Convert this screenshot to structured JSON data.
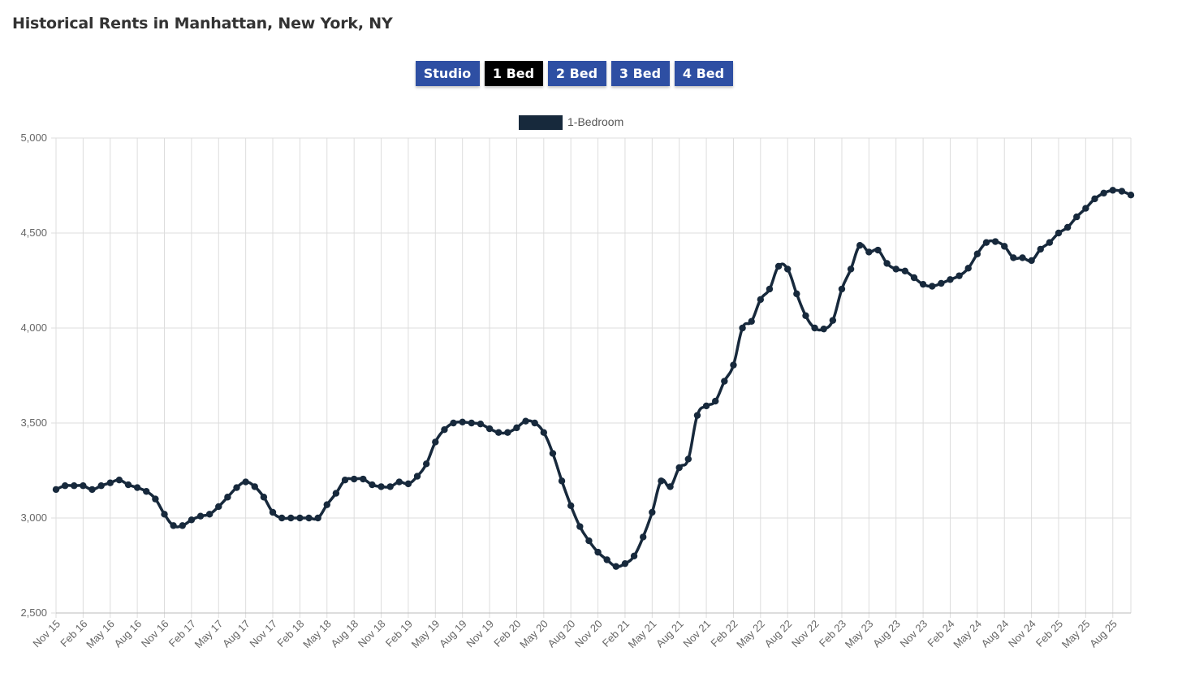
{
  "page": {
    "title": "Historical Rents in Manhattan, New York, NY"
  },
  "tabs": [
    {
      "label": "Studio",
      "active": false
    },
    {
      "label": "1 Bed",
      "active": true
    },
    {
      "label": "2 Bed",
      "active": false
    },
    {
      "label": "3 Bed",
      "active": false
    },
    {
      "label": "4 Bed",
      "active": false
    }
  ],
  "colors": {
    "tab_inactive": "#2e4fa3",
    "tab_active": "#000000",
    "series": "#17293c",
    "grid": "#dddddd"
  },
  "chart_data": {
    "type": "line",
    "title": "",
    "xlabel": "",
    "ylabel": "",
    "ylim": [
      2500,
      5000
    ],
    "yticks": [
      2500,
      3000,
      3500,
      4000,
      4500,
      5000
    ],
    "ytick_labels": [
      "2,500",
      "3,000",
      "3,500",
      "4,000",
      "4,500",
      "5,000"
    ],
    "x_tick_labels": [
      "Nov 15",
      "Feb 16",
      "May 16",
      "Aug 16",
      "Nov 16",
      "Feb 17",
      "May 17",
      "Aug 17",
      "Nov 17",
      "Feb 18",
      "May 18",
      "Aug 18",
      "Nov 18",
      "Feb 19",
      "May 19",
      "Aug 19",
      "Nov 19",
      "Feb 20",
      "May 20",
      "Aug 20",
      "Nov 20",
      "Feb 21",
      "May 21",
      "Aug 21",
      "Nov 21",
      "Feb 22",
      "May 22",
      "Aug 22",
      "Nov 22",
      "Feb 23",
      "May 23",
      "Aug 23",
      "Nov 23",
      "Feb 24",
      "May 24",
      "Aug 24",
      "Nov 24",
      "Feb 25",
      "May 25",
      "Aug 25"
    ],
    "grid": true,
    "legend": "top-center",
    "series": [
      {
        "name": "1-Bedroom",
        "color": "#17293c",
        "values": [
          3150,
          3170,
          3170,
          3170,
          3150,
          3170,
          3185,
          3200,
          3175,
          3160,
          3140,
          3100,
          3020,
          2960,
          2960,
          2990,
          3010,
          3020,
          3060,
          3110,
          3160,
          3190,
          3165,
          3110,
          3030,
          3000,
          3000,
          3000,
          3000,
          3000,
          3070,
          3130,
          3200,
          3205,
          3205,
          3175,
          3165,
          3165,
          3190,
          3180,
          3220,
          3285,
          3400,
          3465,
          3500,
          3505,
          3500,
          3495,
          3470,
          3450,
          3450,
          3475,
          3510,
          3500,
          3450,
          3340,
          3195,
          3065,
          2955,
          2880,
          2820,
          2780,
          2745,
          2760,
          2800,
          2900,
          3030,
          3195,
          3165,
          3265,
          3310,
          3540,
          3590,
          3615,
          3720,
          3805,
          4000,
          4035,
          4150,
          4205,
          4325,
          4310,
          4180,
          4065,
          4000,
          3995,
          4040,
          4205,
          4310,
          4435,
          4400,
          4410,
          4340,
          4310,
          4300,
          4265,
          4230,
          4220,
          4235,
          4255,
          4275,
          4315,
          4390,
          4450,
          4455,
          4430,
          4370,
          4370,
          4355,
          4415,
          4450,
          4500,
          4530,
          4585,
          4630,
          4680,
          4710,
          4725,
          4720,
          4700
        ]
      }
    ]
  }
}
